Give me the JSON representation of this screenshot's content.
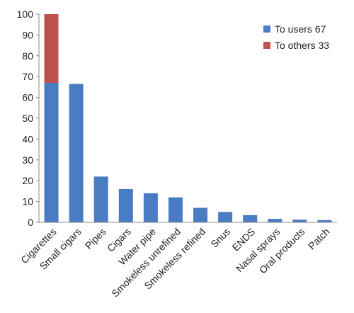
{
  "colors": {
    "to_users": "#4a7cc4",
    "to_others": "#c0504d",
    "axis": "#888888",
    "text": "#222222"
  },
  "chart_data": {
    "type": "bar",
    "stacked": true,
    "categories": [
      "Cigarettes",
      "Small cigars",
      "Pipes",
      "Cigars",
      "Water pipe",
      "Smokeless unrefined",
      "Smokeless refined",
      "Snus",
      "ENDS",
      "Nasal sprays",
      "Oral products",
      "Patch"
    ],
    "series": [
      {
        "name": "To users 67",
        "values": [
          67,
          66.5,
          22,
          16,
          14,
          12,
          7,
          5,
          3.5,
          1.7,
          1.3,
          1.1
        ]
      },
      {
        "name": "To others 33",
        "values": [
          33,
          0,
          0,
          0,
          0,
          0,
          0,
          0,
          0,
          0,
          0,
          0
        ]
      }
    ],
    "ylim": [
      0,
      100
    ],
    "yticks": [
      "0",
      "10",
      "20",
      "30",
      "40",
      "50",
      "60",
      "70",
      "80",
      "90",
      "100"
    ],
    "grid": false,
    "legend": "top-right",
    "title": "",
    "xlabel": "",
    "ylabel": ""
  }
}
